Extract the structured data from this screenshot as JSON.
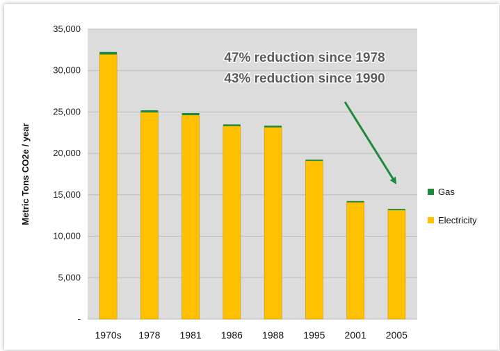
{
  "chart_data": {
    "type": "bar",
    "stacked": true,
    "categories": [
      "1970s",
      "1978",
      "1981",
      "1986",
      "1988",
      "1995",
      "2001",
      "2005"
    ],
    "series": [
      {
        "name": "Electricity",
        "color": "#FFC000",
        "values": [
          31950,
          24950,
          24620,
          23300,
          23150,
          19100,
          14100,
          13150
        ]
      },
      {
        "name": "Gas",
        "color": "#1E8A3C",
        "values": [
          300,
          250,
          250,
          200,
          200,
          150,
          150,
          150
        ]
      }
    ],
    "ylabel": "Metric Tons CO2e / year",
    "ylim": [
      0,
      35000
    ],
    "yticks": [
      0,
      5000,
      10000,
      15000,
      20000,
      25000,
      30000,
      35000
    ],
    "ytick_labels": [
      "-",
      "5,000",
      "10,000",
      "15,000",
      "20,000",
      "25,000",
      "30,000",
      "35,000"
    ],
    "grid": true,
    "plot_background": "#DCDCDC",
    "legend": {
      "position": "right",
      "entries": [
        "Gas",
        "Electricity"
      ]
    },
    "annotations": [
      "47% reduction since 1978",
      "43% reduction since 1990"
    ],
    "arrow_color": "#1E8A3C"
  }
}
